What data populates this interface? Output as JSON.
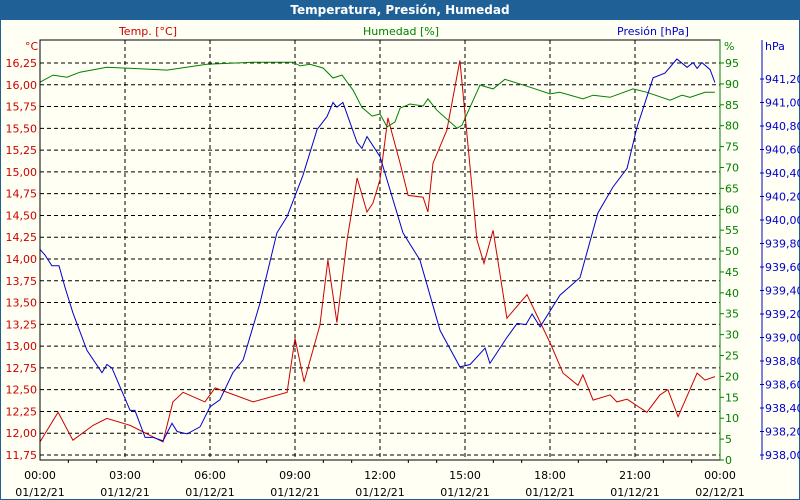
{
  "title": "Temperatura, Presión, Humedad",
  "chart_data": {
    "type": "line",
    "title": "Temperatura, Presión, Humedad",
    "x_unit": "hours since 01/12/21 00:00",
    "xlim": [
      0,
      24
    ],
    "x_ticks": [
      {
        "h": 0,
        "time": "00:00",
        "date": "01/12/21"
      },
      {
        "h": 3,
        "time": "03:00",
        "date": "01/12/21"
      },
      {
        "h": 6,
        "time": "06:00",
        "date": "01/12/21"
      },
      {
        "h": 9,
        "time": "09:00",
        "date": "01/12/21"
      },
      {
        "h": 12,
        "time": "12:00",
        "date": "01/12/21"
      },
      {
        "h": 15,
        "time": "15:00",
        "date": "01/12/21"
      },
      {
        "h": 18,
        "time": "18:00",
        "date": "01/12/21"
      },
      {
        "h": 21,
        "time": "21:00",
        "date": "01/12/21"
      },
      {
        "h": 24,
        "time": "00:00",
        "date": "02/12/21"
      }
    ],
    "axes": {
      "temp": {
        "label": "Temp. [°C]",
        "unit": "°C",
        "color": "#cc0000",
        "ylim": [
          11.75,
          16.25
        ],
        "ticks": [
          "11,75",
          "12,00",
          "12,25",
          "12,50",
          "12,75",
          "13,00",
          "13,25",
          "13,50",
          "13,75",
          "14,00",
          "14,25",
          "14,50",
          "14,75",
          "15,00",
          "15,25",
          "15,50",
          "15,75",
          "16,00",
          "16,25"
        ]
      },
      "hum": {
        "label": "Humedad [%]",
        "unit": "%",
        "color": "#008000",
        "ylim": [
          0,
          95
        ],
        "ticks": [
          "0",
          "5",
          "10",
          "15",
          "20",
          "25",
          "30",
          "35",
          "40",
          "45",
          "50",
          "55",
          "60",
          "65",
          "70",
          "75",
          "80",
          "85",
          "90",
          "95"
        ]
      },
      "pres": {
        "label": "Presión [hPa]",
        "unit": "hPa",
        "color": "#0000cc",
        "ylim": [
          938.0,
          941.2
        ],
        "ticks": [
          "938,00",
          "938,20",
          "938,40",
          "938,60",
          "938,80",
          "939,00",
          "939,20",
          "939,40",
          "939,60",
          "939,80",
          "940,00",
          "940,20",
          "940,40",
          "940,60",
          "940,80",
          "941,00",
          "941,20"
        ]
      }
    },
    "grid": true,
    "series": [
      {
        "name": "Temp. [°C]",
        "axis": "temp",
        "color": "#cc0000",
        "x": [
          0,
          0.64,
          1.16,
          1.87,
          2.36,
          3.18,
          4.34,
          4.69,
          5.05,
          5.82,
          6.18,
          7.52,
          8.72,
          9.0,
          9.32,
          9.88,
          10.16,
          10.48,
          10.84,
          11.19,
          11.54,
          11.75,
          12.0,
          12.28,
          12.71,
          12.99,
          13.52,
          13.69,
          13.87,
          14.36,
          14.82,
          15.11,
          15.42,
          15.67,
          15.99,
          16.48,
          17.19,
          18.0,
          18.46,
          18.99,
          19.16,
          19.52,
          20.12,
          20.36,
          20.72,
          21.42,
          21.88,
          22.16,
          22.52,
          23.19,
          23.47,
          23.82
        ],
        "y": [
          11.9,
          12.24,
          11.92,
          12.09,
          12.17,
          12.09,
          11.9,
          12.36,
          12.47,
          12.36,
          12.52,
          12.36,
          12.47,
          13.09,
          12.59,
          13.24,
          13.99,
          13.27,
          14.22,
          14.93,
          14.54,
          14.64,
          14.91,
          15.62,
          15.1,
          14.73,
          14.71,
          14.54,
          15.1,
          15.48,
          16.28,
          15.29,
          14.22,
          13.95,
          14.33,
          13.32,
          13.59,
          13.04,
          12.69,
          12.55,
          12.67,
          12.38,
          12.44,
          12.36,
          12.39,
          12.24,
          12.44,
          12.5,
          12.19,
          12.69,
          12.61,
          12.65
        ]
      },
      {
        "name": "Humedad [%]",
        "axis": "hum",
        "color": "#008000",
        "x": [
          0,
          0.46,
          0.95,
          1.41,
          2.36,
          4.48,
          5.89,
          7.52,
          8.93,
          9.18,
          9.53,
          9.99,
          10.34,
          10.66,
          11.05,
          11.36,
          11.72,
          12.0,
          12.25,
          12.53,
          12.71,
          13.06,
          13.52,
          13.69,
          14.01,
          14.72,
          14.89,
          15.53,
          15.99,
          16.41,
          17.29,
          18.0,
          18.35,
          19.16,
          19.52,
          20.12,
          20.93,
          21.42,
          22.24,
          22.66,
          22.94,
          23.47,
          23.82
        ],
        "y": [
          90.4,
          92.1,
          91.6,
          92.8,
          94.0,
          93.3,
          94.7,
          95.2,
          95.2,
          94.3,
          94.7,
          93.8,
          91.4,
          92.1,
          88.5,
          84.4,
          82.3,
          82.8,
          79.7,
          80.9,
          84.2,
          85.2,
          84.7,
          86.4,
          83.7,
          79.4,
          80.1,
          89.7,
          88.8,
          91.1,
          89.2,
          87.6,
          88.0,
          86.4,
          87.3,
          86.8,
          88.8,
          88.0,
          86.1,
          87.3,
          86.8,
          88.0,
          88.0
        ]
      },
      {
        "name": "Presión [hPa]",
        "axis": "pres",
        "color": "#0000cc",
        "x": [
          0,
          0.18,
          0.42,
          0.67,
          0.88,
          1.16,
          1.66,
          2.19,
          2.36,
          2.54,
          3.18,
          3.35,
          3.71,
          3.99,
          4.34,
          4.66,
          4.84,
          5.19,
          5.65,
          6.0,
          6.35,
          6.81,
          7.17,
          7.76,
          8.36,
          8.72,
          9.28,
          9.78,
          10.13,
          10.34,
          10.48,
          10.69,
          11.19,
          11.36,
          11.54,
          12.0,
          12.81,
          13.41,
          14.12,
          14.82,
          15.18,
          15.71,
          15.88,
          16.48,
          16.84,
          17.15,
          17.37,
          17.65,
          18.35,
          19.06,
          19.69,
          20.22,
          20.72,
          21.07,
          21.64,
          22.06,
          22.48,
          22.84,
          23.05,
          23.19,
          23.36,
          23.65,
          23.82
        ],
        "y": [
          939.75,
          939.7,
          939.61,
          939.61,
          939.43,
          939.21,
          938.89,
          938.7,
          938.77,
          938.74,
          938.38,
          938.38,
          938.15,
          938.15,
          938.12,
          938.27,
          938.2,
          938.18,
          938.24,
          938.41,
          938.47,
          938.7,
          938.81,
          939.29,
          939.89,
          940.03,
          940.38,
          940.77,
          940.88,
          941.0,
          940.96,
          941.0,
          940.66,
          940.61,
          940.71,
          940.54,
          939.89,
          939.66,
          939.06,
          938.75,
          938.77,
          938.91,
          938.78,
          939.0,
          939.12,
          939.11,
          939.2,
          939.09,
          939.36,
          939.51,
          940.06,
          940.28,
          940.44,
          940.79,
          941.21,
          941.25,
          941.37,
          941.3,
          941.34,
          941.29,
          941.34,
          941.28,
          941.17
        ]
      }
    ]
  }
}
